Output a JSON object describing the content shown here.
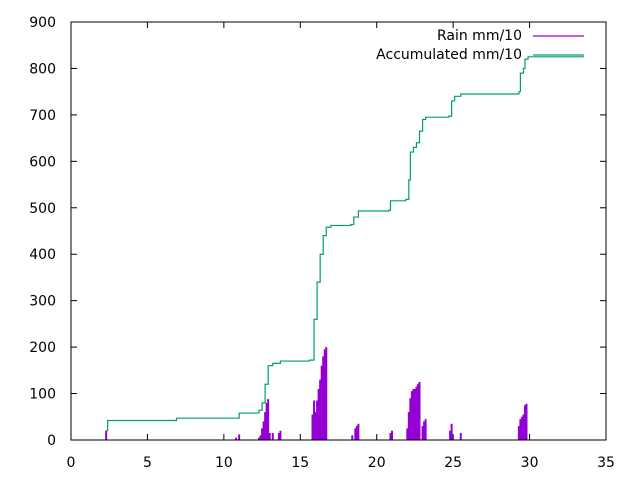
{
  "chart_data": {
    "type": "line",
    "title": "",
    "xlabel": "",
    "ylabel": "",
    "xlim": [
      0,
      35
    ],
    "ylim": [
      0,
      900
    ],
    "xticks": [
      0,
      5,
      10,
      15,
      20,
      25,
      30,
      35
    ],
    "yticks": [
      0,
      100,
      200,
      300,
      400,
      500,
      600,
      700,
      800,
      900
    ],
    "grid": false,
    "legend_position": "top-right",
    "series": [
      {
        "name": "Rain mm/10",
        "type": "impulse",
        "color": "#9400d3",
        "points": [
          [
            2.3,
            20
          ],
          [
            10.8,
            5
          ],
          [
            11.0,
            12
          ],
          [
            12.3,
            5
          ],
          [
            12.4,
            10
          ],
          [
            12.5,
            25
          ],
          [
            12.6,
            40
          ],
          [
            12.7,
            60
          ],
          [
            12.8,
            80
          ],
          [
            12.9,
            88
          ],
          [
            13.0,
            15
          ],
          [
            13.2,
            15
          ],
          [
            13.6,
            15
          ],
          [
            13.7,
            20
          ],
          [
            15.8,
            55
          ],
          [
            15.9,
            85
          ],
          [
            16.0,
            60
          ],
          [
            16.1,
            85
          ],
          [
            16.2,
            110
          ],
          [
            16.3,
            130
          ],
          [
            16.4,
            160
          ],
          [
            16.5,
            180
          ],
          [
            16.6,
            195
          ],
          [
            16.7,
            200
          ],
          [
            18.4,
            10
          ],
          [
            18.6,
            25
          ],
          [
            18.7,
            30
          ],
          [
            18.8,
            35
          ],
          [
            20.9,
            15
          ],
          [
            21.0,
            20
          ],
          [
            22.0,
            25
          ],
          [
            22.1,
            60
          ],
          [
            22.2,
            90
          ],
          [
            22.3,
            105
          ],
          [
            22.4,
            110
          ],
          [
            22.5,
            110
          ],
          [
            22.6,
            115
          ],
          [
            22.7,
            120
          ],
          [
            22.8,
            125
          ],
          [
            23.0,
            30
          ],
          [
            23.1,
            40
          ],
          [
            23.2,
            45
          ],
          [
            24.8,
            20
          ],
          [
            24.9,
            35
          ],
          [
            25.5,
            15
          ],
          [
            29.3,
            30
          ],
          [
            29.4,
            45
          ],
          [
            29.5,
            50
          ],
          [
            29.6,
            55
          ],
          [
            29.7,
            75
          ],
          [
            29.8,
            78
          ]
        ]
      },
      {
        "name": "Accumulated mm/10",
        "type": "step",
        "color": "#009e73",
        "points": [
          [
            2.3,
            20
          ],
          [
            2.4,
            42
          ],
          [
            6.8,
            42
          ],
          [
            6.9,
            47
          ],
          [
            10.8,
            47
          ],
          [
            11.0,
            58
          ],
          [
            12.3,
            64
          ],
          [
            12.5,
            80
          ],
          [
            12.7,
            120
          ],
          [
            12.9,
            160
          ],
          [
            13.2,
            165
          ],
          [
            13.7,
            170
          ],
          [
            15.6,
            172
          ],
          [
            15.9,
            260
          ],
          [
            16.1,
            340
          ],
          [
            16.3,
            400
          ],
          [
            16.5,
            440
          ],
          [
            16.7,
            458
          ],
          [
            17.0,
            462
          ],
          [
            18.3,
            464
          ],
          [
            18.5,
            480
          ],
          [
            18.8,
            493
          ],
          [
            20.8,
            495
          ],
          [
            20.9,
            515
          ],
          [
            21.9,
            518
          ],
          [
            22.1,
            560
          ],
          [
            22.2,
            620
          ],
          [
            22.4,
            630
          ],
          [
            22.6,
            640
          ],
          [
            22.8,
            665
          ],
          [
            23.0,
            690
          ],
          [
            23.2,
            695
          ],
          [
            24.7,
            697
          ],
          [
            24.9,
            730
          ],
          [
            25.1,
            740
          ],
          [
            25.5,
            745
          ],
          [
            29.3,
            750
          ],
          [
            29.4,
            790
          ],
          [
            29.6,
            800
          ],
          [
            29.7,
            820
          ],
          [
            29.9,
            825
          ],
          [
            33.5,
            827
          ]
        ]
      }
    ]
  }
}
